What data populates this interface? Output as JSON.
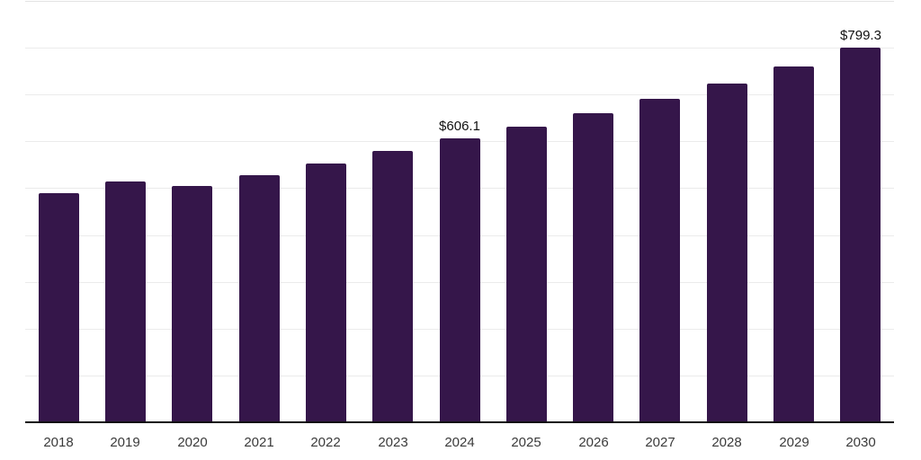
{
  "chart_data": {
    "type": "bar",
    "title": "",
    "categories": [
      "2018",
      "2019",
      "2020",
      "2021",
      "2022",
      "2023",
      "2024",
      "2025",
      "2026",
      "2027",
      "2028",
      "2029",
      "2030"
    ],
    "values": [
      490,
      514,
      504,
      527,
      553,
      579,
      606.1,
      632,
      660,
      690,
      724,
      760,
      799.3
    ],
    "data_labels": [
      "",
      "",
      "",
      "",
      "",
      "",
      "$606.1",
      "",
      "",
      "",
      "",
      "",
      "$799.3"
    ],
    "xlabel": "",
    "ylabel": "",
    "ylim": [
      0,
      900
    ],
    "gridline_step": 100,
    "grid": true,
    "legend_position": "none",
    "colors": {
      "bar_fill": "#35164A",
      "gridline": "#ebebeb",
      "axis_line": "#111111",
      "tick_label": "#3a3a3a",
      "data_label": "#111111",
      "background": "#ffffff"
    }
  }
}
